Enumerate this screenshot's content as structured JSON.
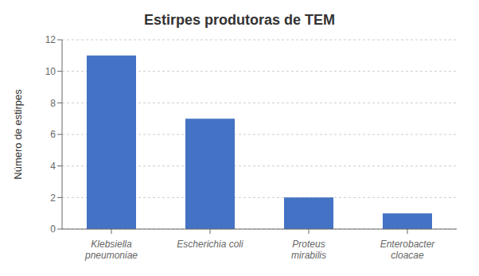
{
  "chart_data": {
    "type": "bar",
    "title": "Estirpes produtoras de TEM",
    "ylabel": "Número de estirpes",
    "categories": [
      "Klebsiella\npneumoniae",
      "Escherichia coli",
      "Proteus\nmirabilis",
      "Enterobacter\ncloacae"
    ],
    "values": [
      11,
      7,
      2,
      1
    ],
    "color": "#4472C4",
    "ylim": [
      0,
      12
    ],
    "yticks": [
      0,
      2,
      4,
      6,
      8,
      10,
      12
    ],
    "grid": true
  }
}
